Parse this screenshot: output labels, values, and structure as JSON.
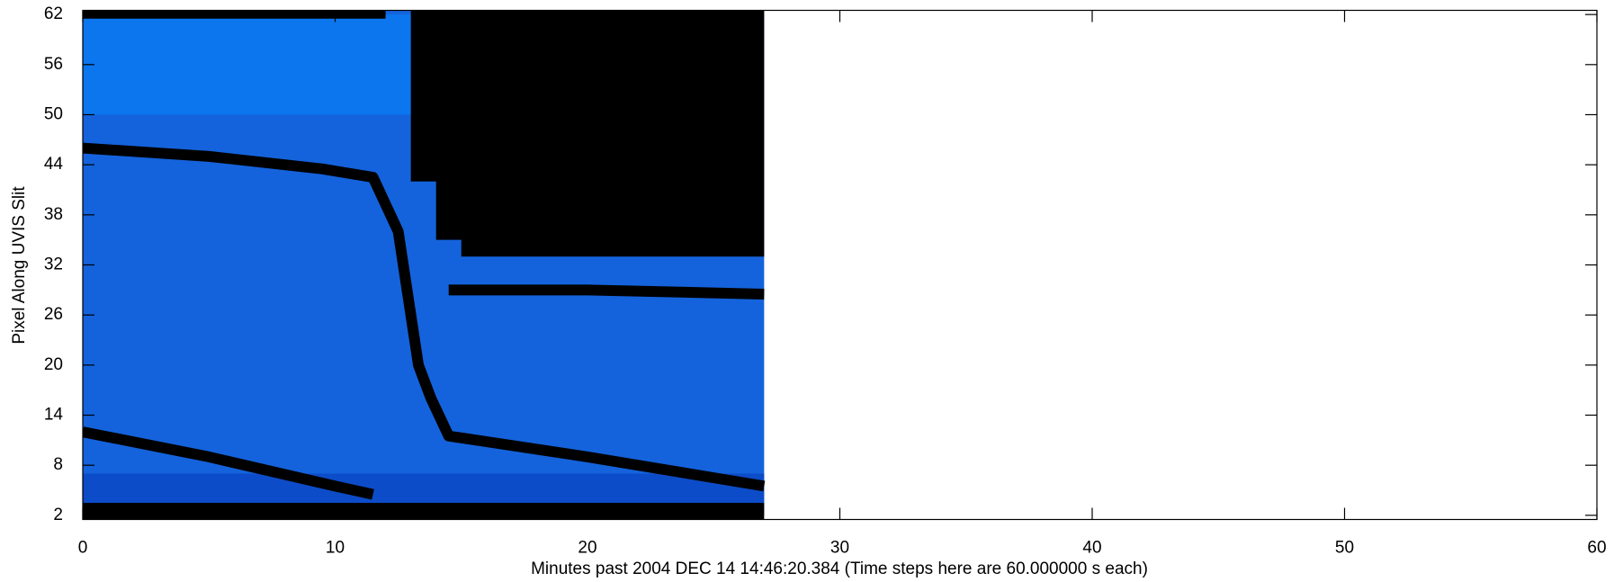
{
  "chart_data": {
    "type": "line",
    "x_label": "Minutes past 2004 DEC 14 14:46:20.384 (Time steps here are 60.000000 s each)",
    "y_label": "Pixel Along UVIS Slit",
    "xlim": [
      0,
      60
    ],
    "xticks": [
      0,
      10,
      20,
      30,
      40,
      50,
      60
    ],
    "ylim": [
      1.5,
      62.5
    ],
    "yticks": [
      2,
      8,
      14,
      20,
      26,
      32,
      38,
      44,
      50,
      56,
      62
    ],
    "series": [
      {
        "fill": true,
        "color": "#1463dc",
        "x": [
          0,
          27,
          27,
          0
        ],
        "values": [
          2,
          2,
          62.5,
          62.5
        ]
      },
      {
        "fill": true,
        "color": "#0b76ee",
        "x": [
          0,
          13,
          13,
          0
        ],
        "values": [
          50,
          50,
          62,
          62
        ]
      },
      {
        "fill": true,
        "color": "#0d4cc8",
        "x": [
          0,
          27,
          27,
          0
        ],
        "values": [
          3.5,
          3.5,
          7,
          7
        ]
      },
      {
        "fill": true,
        "color": "#000000",
        "x": [
          13,
          13,
          14,
          14,
          15,
          15,
          27,
          27
        ],
        "values": [
          62.5,
          42,
          42,
          35,
          35,
          33,
          33,
          62.5
        ]
      },
      {
        "fill": true,
        "color": "#000000",
        "x": [
          0,
          27,
          27,
          0
        ],
        "values": [
          1.5,
          1.5,
          3.5,
          3.5
        ]
      },
      {
        "fill": true,
        "color": "#000000",
        "x": [
          0,
          12,
          12,
          0
        ],
        "values": [
          61.5,
          61.5,
          62.5,
          62.5
        ]
      },
      {
        "fill": false,
        "color": "#000000",
        "x": [
          0,
          5,
          9.5,
          11.5,
          12.5,
          13.3,
          13.8,
          14.5,
          20,
          27
        ],
        "values": [
          46,
          45,
          43.5,
          42.5,
          36,
          20,
          16,
          11.5,
          9,
          5.5
        ]
      },
      {
        "fill": false,
        "color": "#000000",
        "x": [
          0,
          5,
          10,
          11.5
        ],
        "values": [
          12,
          9,
          5.5,
          4.5
        ]
      },
      {
        "fill": false,
        "color": "#000000",
        "x": [
          14.5,
          20,
          27
        ],
        "values": [
          29,
          29,
          28.5
        ]
      }
    ]
  }
}
